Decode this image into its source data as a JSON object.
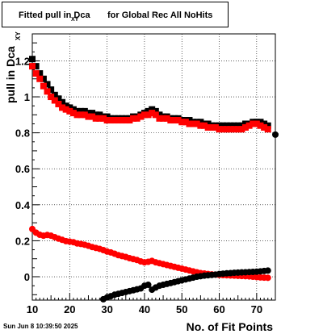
{
  "title": {
    "main": "Fitted pull in Dca",
    "sub": "XY",
    "rest": "for Global Rec All NoHits"
  },
  "timestamp": "Sun Jun  8 10:39:50 2025",
  "chart_data": {
    "type": "scatter",
    "xlabel": "No. of Fit Points",
    "ylabel": "pull in Dca",
    "ylabel_sub": "XY",
    "xlim": [
      10,
      75
    ],
    "ylim": [
      -0.13,
      1.35
    ],
    "xticks": [
      10,
      20,
      30,
      40,
      50,
      60,
      70
    ],
    "yticks": [
      0,
      0.2,
      0.4,
      0.6,
      0.8,
      1,
      1.2
    ],
    "ytick_labels": [
      "0",
      "0.2",
      "0.4",
      "0.6",
      "0.8",
      "1",
      "1.2"
    ],
    "grid": true,
    "colors": {
      "black": "#000000",
      "red": "#ff0000"
    },
    "series": [
      {
        "color": "black",
        "marker": "square",
        "x": [
          10,
          11,
          12,
          13,
          14,
          15,
          16,
          17,
          18,
          19,
          20,
          21,
          22,
          23,
          24,
          25,
          26,
          27,
          28,
          29,
          30,
          31,
          32,
          33,
          34,
          35,
          36,
          37,
          38,
          39,
          40,
          41,
          42,
          43,
          44,
          45,
          46,
          47,
          48,
          49,
          50,
          51,
          52,
          53,
          54,
          55,
          56,
          57,
          58,
          59,
          60,
          61,
          62,
          63,
          64,
          65,
          66,
          67,
          68,
          69,
          70,
          71,
          72,
          73
        ],
        "y": [
          1.21,
          1.17,
          1.13,
          1.1,
          1.07,
          1.04,
          1.01,
          0.99,
          0.97,
          0.95,
          0.94,
          0.93,
          0.92,
          0.92,
          0.92,
          0.91,
          0.91,
          0.9,
          0.9,
          0.89,
          0.89,
          0.88,
          0.88,
          0.88,
          0.88,
          0.88,
          0.88,
          0.89,
          0.89,
          0.9,
          0.91,
          0.92,
          0.93,
          0.92,
          0.9,
          0.89,
          0.89,
          0.88,
          0.88,
          0.88,
          0.87,
          0.87,
          0.87,
          0.86,
          0.86,
          0.86,
          0.85,
          0.85,
          0.84,
          0.84,
          0.84,
          0.84,
          0.84,
          0.84,
          0.84,
          0.84,
          0.84,
          0.85,
          0.85,
          0.86,
          0.86,
          0.86,
          0.85,
          0.84
        ]
      },
      {
        "color": "red",
        "marker": "square",
        "x": [
          10,
          11,
          12,
          13,
          14,
          15,
          16,
          17,
          18,
          19,
          20,
          21,
          22,
          23,
          24,
          25,
          26,
          27,
          28,
          29,
          30,
          31,
          32,
          33,
          34,
          35,
          36,
          37,
          38,
          39,
          40,
          41,
          42,
          43,
          44,
          45,
          46,
          47,
          48,
          49,
          50,
          51,
          52,
          53,
          54,
          55,
          56,
          57,
          58,
          59,
          60,
          61,
          62,
          63,
          64,
          65,
          66,
          67,
          68,
          69,
          70,
          71,
          72,
          73
        ],
        "y": [
          1.17,
          1.13,
          1.1,
          1.06,
          1.03,
          1.0,
          0.98,
          0.96,
          0.94,
          0.93,
          0.92,
          0.91,
          0.9,
          0.9,
          0.9,
          0.89,
          0.89,
          0.88,
          0.88,
          0.88,
          0.87,
          0.87,
          0.87,
          0.87,
          0.87,
          0.87,
          0.87,
          0.88,
          0.88,
          0.89,
          0.9,
          0.9,
          0.91,
          0.9,
          0.88,
          0.88,
          0.88,
          0.87,
          0.87,
          0.87,
          0.86,
          0.86,
          0.85,
          0.85,
          0.85,
          0.84,
          0.84,
          0.83,
          0.83,
          0.83,
          0.82,
          0.82,
          0.82,
          0.82,
          0.82,
          0.82,
          0.82,
          0.83,
          0.84,
          0.85,
          0.85,
          0.84,
          0.83,
          0.82
        ]
      },
      {
        "color": "red",
        "marker": "circle",
        "x": [
          10,
          11,
          12,
          13,
          14,
          15,
          16,
          17,
          18,
          19,
          20,
          21,
          22,
          23,
          24,
          25,
          26,
          27,
          28,
          29,
          30,
          31,
          32,
          33,
          34,
          35,
          36,
          37,
          38,
          39,
          40,
          41,
          42,
          43,
          44,
          45,
          46,
          47,
          48,
          49,
          50,
          51,
          52,
          53,
          54,
          55,
          56,
          57,
          58,
          59,
          60,
          61,
          62,
          63,
          64,
          65,
          66,
          67,
          68,
          69,
          70,
          71,
          72,
          73
        ],
        "y": [
          0.265,
          0.245,
          0.233,
          0.228,
          0.232,
          0.228,
          0.22,
          0.212,
          0.205,
          0.198,
          0.195,
          0.192,
          0.185,
          0.182,
          0.178,
          0.172,
          0.165,
          0.16,
          0.155,
          0.148,
          0.14,
          0.135,
          0.128,
          0.12,
          0.115,
          0.11,
          0.103,
          0.098,
          0.093,
          0.085,
          0.08,
          0.083,
          0.088,
          0.08,
          0.075,
          0.07,
          0.065,
          0.06,
          0.055,
          0.05,
          0.045,
          0.04,
          0.035,
          0.03,
          0.025,
          0.02,
          0.018,
          0.015,
          0.013,
          0.012,
          0.01,
          0.009,
          0.008,
          0.007,
          0.006,
          0.005,
          0.004,
          0.003,
          0.002,
          0.0,
          -0.002,
          -0.004,
          -0.005,
          -0.006
        ]
      },
      {
        "color": "black",
        "marker": "circle",
        "x": [
          29,
          30,
          31,
          32,
          33,
          34,
          35,
          36,
          37,
          38,
          39,
          40,
          41,
          42,
          43,
          44,
          45,
          46,
          47,
          48,
          49,
          50,
          51,
          52,
          53,
          54,
          55,
          56,
          57,
          58,
          59,
          60,
          61,
          62,
          63,
          64,
          65,
          66,
          67,
          68,
          69,
          70,
          71,
          72,
          73,
          75
        ],
        "y": [
          -0.125,
          -0.115,
          -0.108,
          -0.1,
          -0.095,
          -0.09,
          -0.085,
          -0.08,
          -0.075,
          -0.07,
          -0.065,
          -0.05,
          -0.045,
          -0.072,
          -0.06,
          -0.05,
          -0.045,
          -0.04,
          -0.035,
          -0.03,
          -0.025,
          -0.02,
          -0.015,
          -0.01,
          -0.005,
          0.0,
          0.003,
          0.006,
          0.008,
          0.01,
          0.012,
          0.015,
          0.017,
          0.019,
          0.02,
          0.022,
          0.023,
          0.024,
          0.025,
          0.026,
          0.027,
          0.028,
          0.03,
          0.032,
          0.034,
          0.79
        ]
      }
    ]
  }
}
